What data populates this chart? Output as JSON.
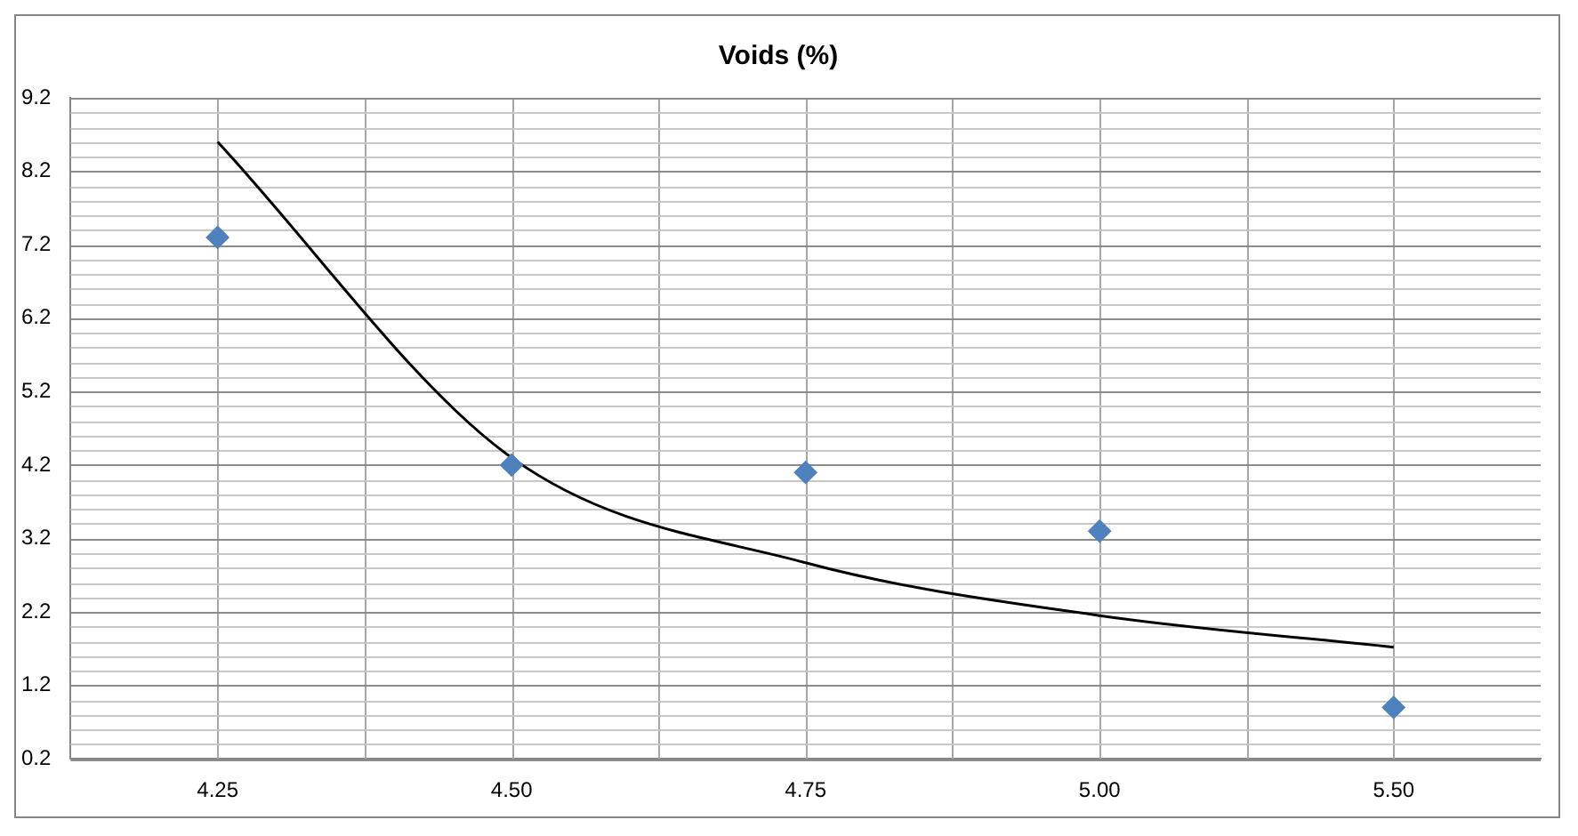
{
  "chart_data": {
    "type": "scatter",
    "title": "Voids (%)",
    "categories": [
      "4.25",
      "4.50",
      "4.75",
      "5.00",
      "5.50"
    ],
    "series": [
      {
        "color": "#4f81bd",
        "marker": "diamond",
        "values": [
          7.3,
          4.2,
          4.1,
          3.3,
          0.9
        ]
      },
      {
        "type": "line",
        "color": "#000000",
        "marker": "none",
        "values": [
          8.6,
          4.3,
          2.87,
          2.15,
          1.72
        ]
      }
    ],
    "ylim": [
      0.2,
      9.2
    ],
    "yticks": [
      0.2,
      1.2,
      2.2,
      3.2,
      4.2,
      5.2,
      6.2,
      7.2,
      8.2,
      9.2
    ],
    "grid": true,
    "legend": false
  }
}
